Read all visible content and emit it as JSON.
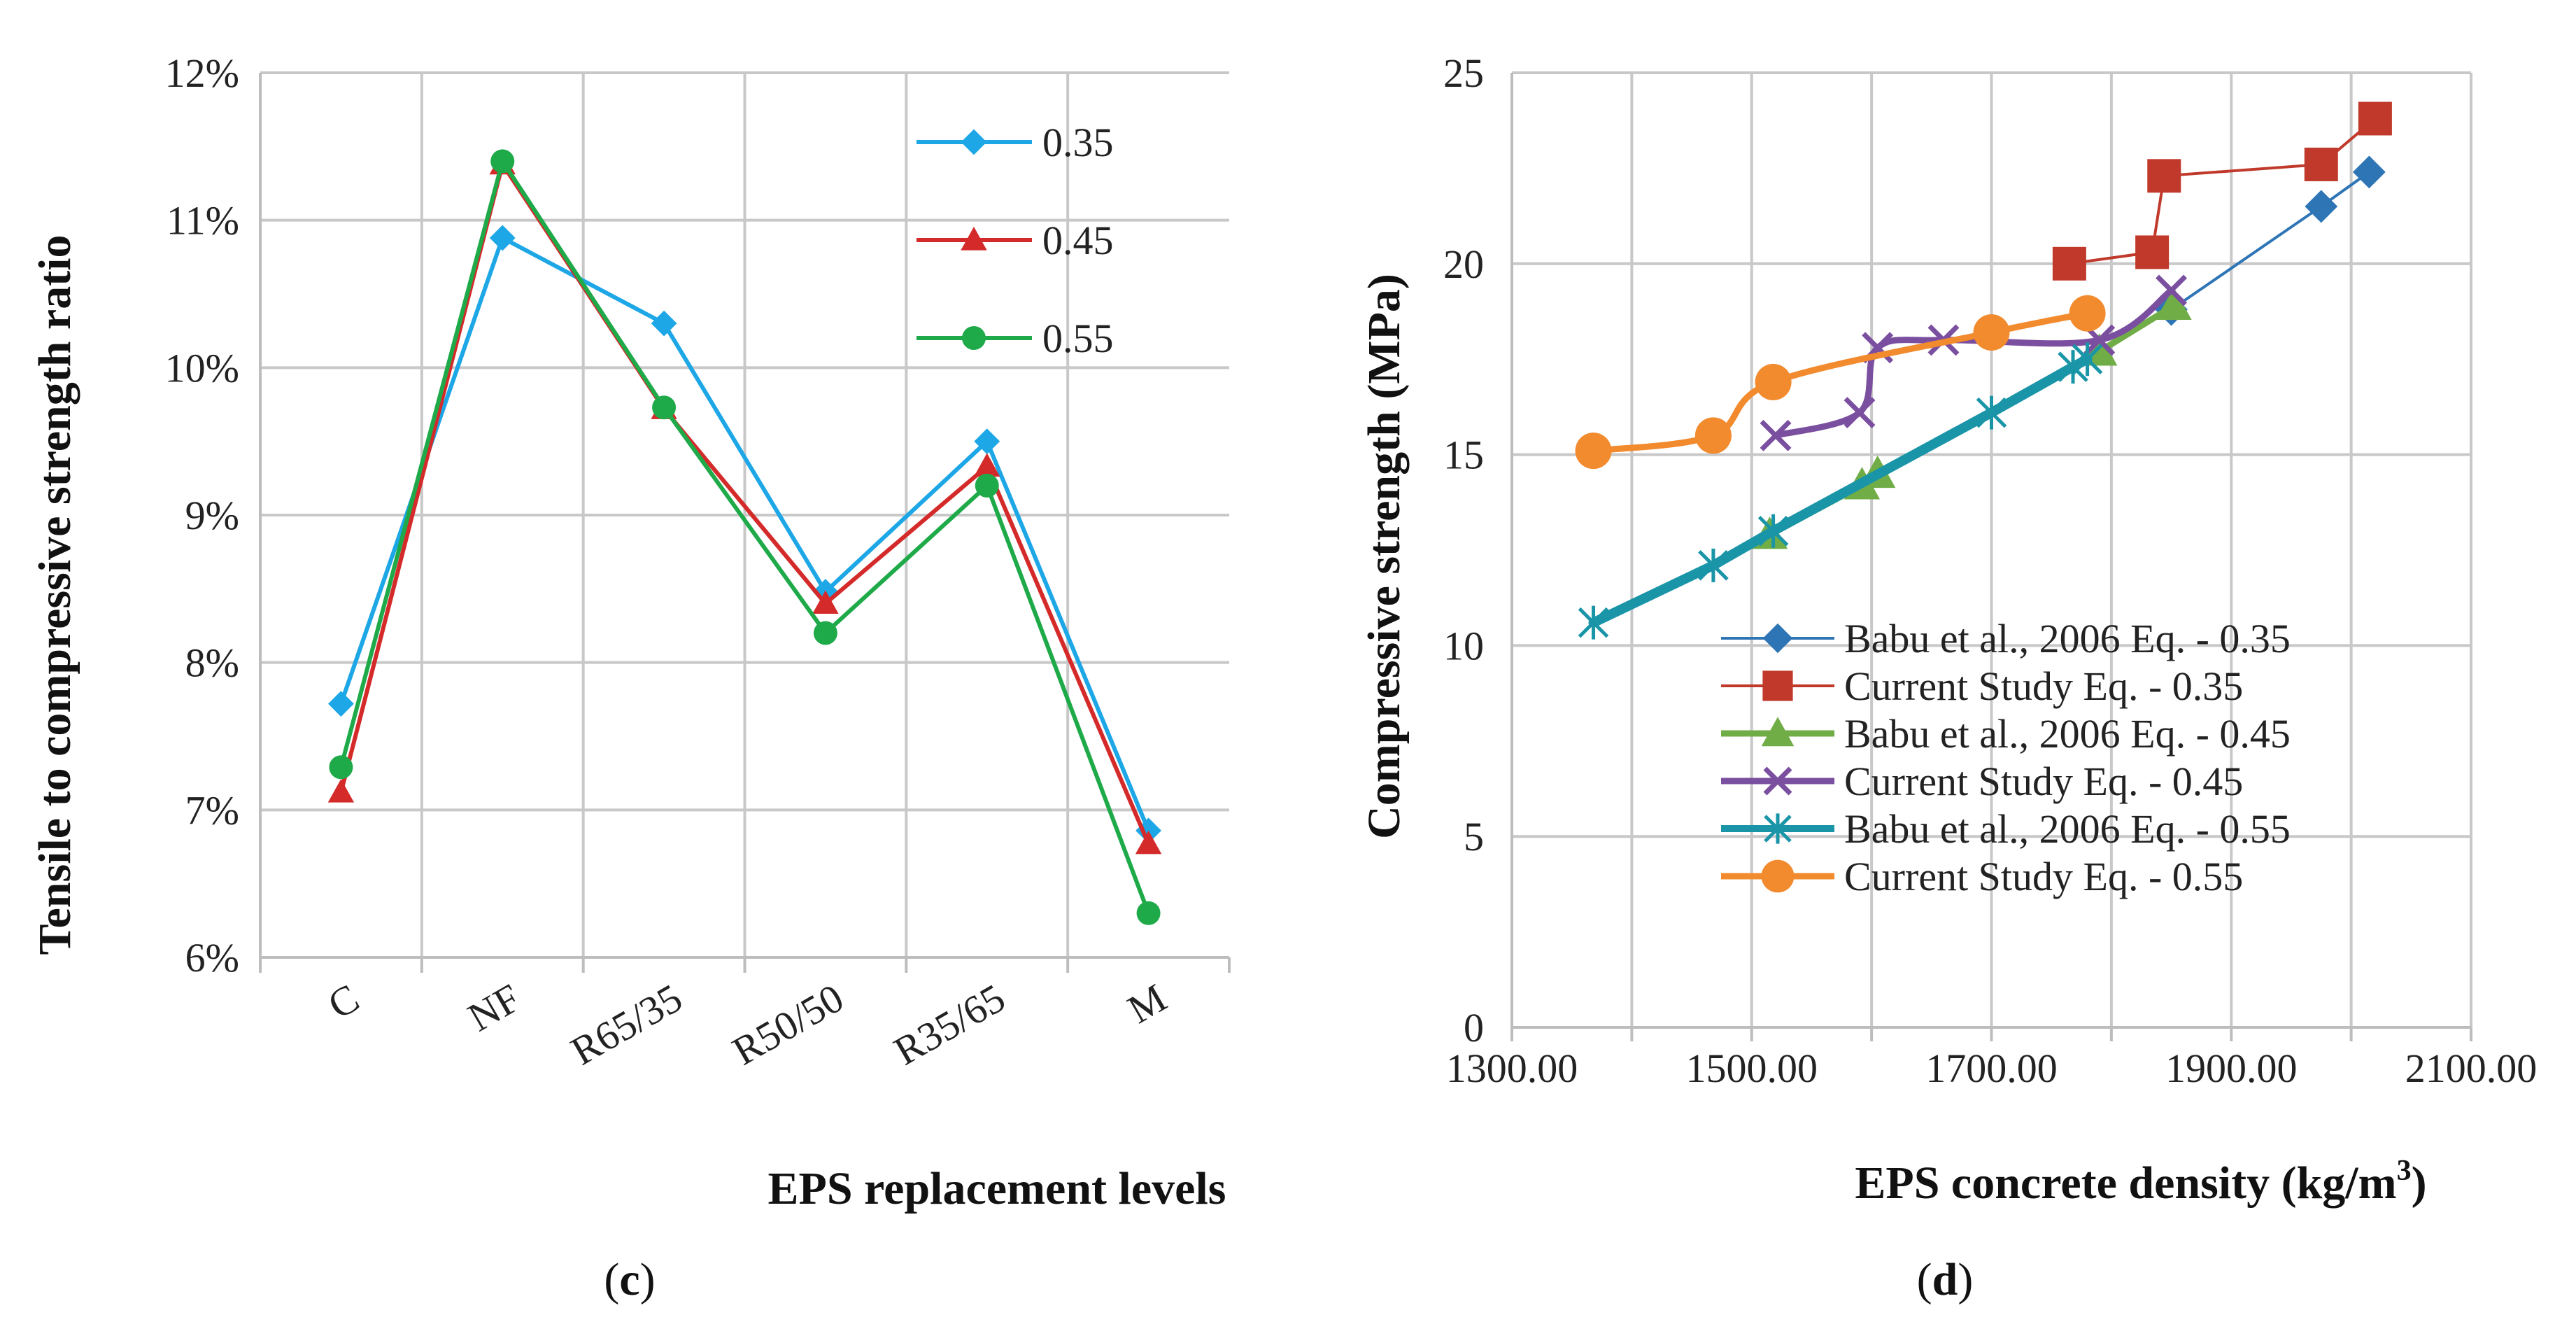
{
  "chart_data": [
    {
      "type": "line",
      "panel_label": {
        "open": "(",
        "letter": "c",
        "close": ")"
      },
      "title": "",
      "xlabel": "EPS replacement levels",
      "ylabel": "Tensile to compressive strength ratio",
      "categories": [
        "C",
        "NF",
        "R65/35",
        "R50/50",
        "R35/65",
        "M"
      ],
      "ylim": [
        6,
        12
      ],
      "yticks": [
        6,
        7,
        8,
        9,
        10,
        11,
        12
      ],
      "ytick_labels": [
        "6%",
        "7%",
        "8%",
        "9%",
        "10%",
        "11%",
        "12%"
      ],
      "y_unit": "%",
      "grid": true,
      "legend_position": "top-right",
      "series": [
        {
          "name": "0.35",
          "values": [
            7.72,
            10.88,
            10.3,
            8.48,
            9.5,
            6.86
          ],
          "color": "#1ea7e6",
          "marker": "diamond"
        },
        {
          "name": "0.45",
          "values": [
            7.12,
            11.38,
            9.72,
            8.4,
            9.33,
            6.77
          ],
          "color": "#d42a2a",
          "marker": "triangle"
        },
        {
          "name": "0.55",
          "values": [
            7.29,
            11.4,
            9.73,
            8.2,
            9.2,
            6.3
          ],
          "color": "#1faa4a",
          "marker": "circle"
        }
      ]
    },
    {
      "type": "line",
      "panel_label": {
        "open": "(",
        "letter": "d",
        "close": ")"
      },
      "title": "",
      "xlabel": "EPS concrete density (kg/m",
      "xlabel_sup": "3",
      "xlabel_close": ")",
      "ylabel": "Compressive strength (MPa)",
      "xlim": [
        1300,
        2100
      ],
      "xticks": [
        1300,
        1500,
        1700,
        1900,
        2100
      ],
      "xtick_labels": [
        "1300.00",
        "1500.00",
        "1700.00",
        "1900.00",
        "2100.00"
      ],
      "ylim": [
        0,
        25
      ],
      "yticks": [
        0,
        5,
        10,
        15,
        20,
        25
      ],
      "ytick_labels": [
        "0",
        "5",
        "10",
        "15",
        "20",
        "25"
      ],
      "grid": true,
      "legend_position": "bottom-right",
      "series": [
        {
          "name": "Babu et al., 2006  Eq. - 0.35",
          "color": "#2e75b6",
          "marker": "diamond",
          "width": 4,
          "smooth": false,
          "x": [
            1850,
            1975,
            2015
          ],
          "y": [
            18.8,
            21.5,
            22.4
          ]
        },
        {
          "name": "Current Study Eq. - 0.35",
          "color": "#c0392b",
          "marker": "square",
          "width": 4,
          "smooth": false,
          "x": [
            1765,
            1834,
            1844,
            1975,
            2020
          ],
          "y": [
            20.0,
            20.3,
            22.3,
            22.6,
            23.8
          ]
        },
        {
          "name": "Babu et al., 2006  Eq. - 0.45",
          "color": "#70ad47",
          "marker": "triangle",
          "width": 9,
          "smooth": false,
          "x": [
            1515,
            1592,
            1605,
            1790,
            1852
          ],
          "y": [
            12.9,
            14.2,
            14.5,
            17.7,
            18.9
          ]
        },
        {
          "name": "Current Study Eq. - 0.45",
          "color": "#7b4fa0",
          "marker": "x",
          "width": 9,
          "smooth": true,
          "x": [
            1520,
            1590,
            1605,
            1660,
            1790,
            1850
          ],
          "y": [
            15.5,
            16.1,
            17.8,
            18.0,
            18.0,
            19.3
          ]
        },
        {
          "name": "Babu et al., 2006  Eq. - 0.55",
          "color": "#1a95a8",
          "marker": "asterisk",
          "width": 14,
          "smooth": false,
          "x": [
            1368,
            1468,
            1518,
            1700,
            1768,
            1780
          ],
          "y": [
            10.6,
            12.1,
            13.0,
            16.1,
            17.3,
            17.5
          ]
        },
        {
          "name": "Current Study Eq. - 0.55",
          "color": "#f28a2e",
          "marker": "circle",
          "width": 9,
          "smooth": true,
          "x": [
            1368,
            1468,
            1518,
            1700,
            1780
          ],
          "y": [
            15.1,
            15.5,
            16.9,
            18.2,
            18.7
          ]
        }
      ]
    }
  ]
}
